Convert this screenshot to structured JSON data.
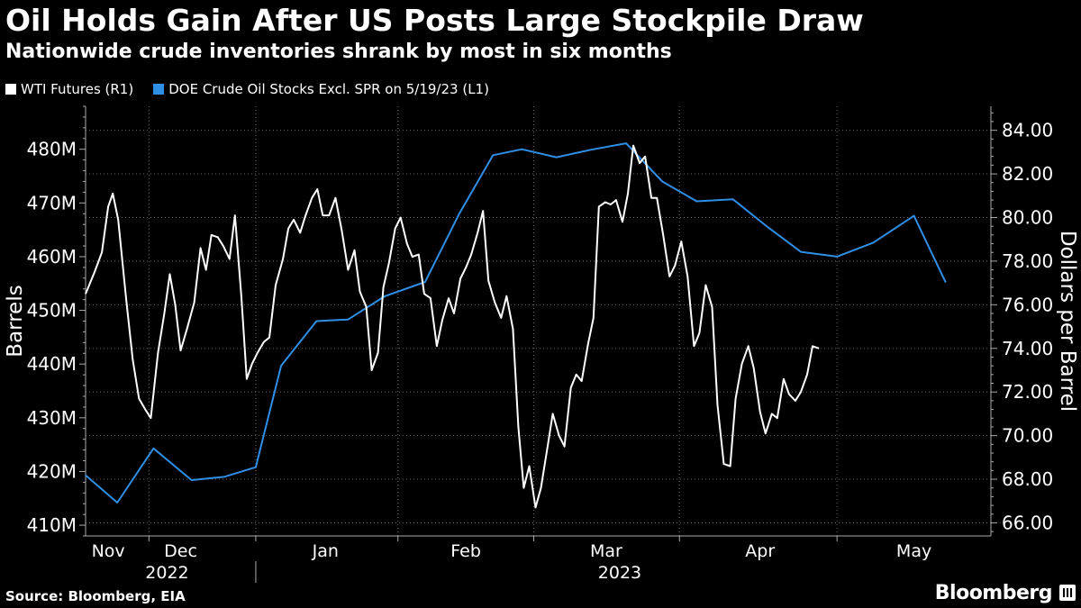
{
  "title": "Oil Holds Gain After US Posts Large Stockpile Draw",
  "subtitle": "Nationwide crude inventories shrank by most in six months",
  "source": "Source: Bloomberg, EIA",
  "brand": "Bloomberg",
  "chart_data": {
    "type": "line",
    "legend": [
      {
        "name": "WTI Futures (R1)",
        "color": "#ffffff"
      },
      {
        "name": "DOE Crude Oil Stocks Excl. SPR on 5/19/23 (L1)",
        "color": "#2f8fe6"
      }
    ],
    "y_left": {
      "label": "Barrels",
      "range": [
        408,
        488
      ],
      "ticks": [
        {
          "value": 410,
          "label": "410M"
        },
        {
          "value": 420,
          "label": "420M"
        },
        {
          "value": 430,
          "label": "430M"
        },
        {
          "value": 440,
          "label": "440M"
        },
        {
          "value": 450,
          "label": "450M"
        },
        {
          "value": 460,
          "label": "460M"
        },
        {
          "value": 470,
          "label": "470M"
        },
        {
          "value": 480,
          "label": "480M"
        }
      ]
    },
    "y_right": {
      "label": "Dollars per Barrel",
      "range": [
        65.4,
        85.1
      ],
      "ticks": [
        {
          "value": 66,
          "label": "66.00"
        },
        {
          "value": 68,
          "label": "68.00"
        },
        {
          "value": 70,
          "label": "70.00"
        },
        {
          "value": 72,
          "label": "72.00"
        },
        {
          "value": 74,
          "label": "74.00"
        },
        {
          "value": 76,
          "label": "76.00"
        },
        {
          "value": 78,
          "label": "78.00"
        },
        {
          "value": 80,
          "label": "80.00"
        },
        {
          "value": 82,
          "label": "82.00"
        },
        {
          "value": 84,
          "label": "84.00"
        }
      ]
    },
    "x_axis": {
      "domain": [
        0,
        1
      ],
      "months": [
        {
          "label": "Nov",
          "pos": 0.025
        },
        {
          "label": "Dec",
          "pos": 0.105
        },
        {
          "label": "Jan",
          "pos": 0.265
        },
        {
          "label": "Feb",
          "pos": 0.42
        },
        {
          "label": "Mar",
          "pos": 0.575
        },
        {
          "label": "Apr",
          "pos": 0.745
        },
        {
          "label": "May",
          "pos": 0.915
        }
      ],
      "month_dividers": [
        0.07,
        0.188,
        0.345,
        0.495,
        0.656,
        0.83
      ],
      "years": [
        {
          "label": "2022",
          "pos": 0.09
        },
        {
          "label": "2023",
          "pos": 0.59
        }
      ],
      "year_divider": 0.188
    },
    "series": [
      {
        "name": "DOE Crude Oil Stocks Excl. SPR on 5/19/23",
        "axis": "left",
        "color": "#2f8fe6",
        "points": [
          [
            0,
            419.3
          ],
          [
            0.035,
            414.2
          ],
          [
            0.075,
            424.3
          ],
          [
            0.117,
            418.4
          ],
          [
            0.153,
            419.0
          ],
          [
            0.188,
            420.8
          ],
          [
            0.216,
            439.7
          ],
          [
            0.255,
            448.0
          ],
          [
            0.29,
            448.3
          ],
          [
            0.33,
            452.6
          ],
          [
            0.375,
            455.3
          ],
          [
            0.413,
            468.1
          ],
          [
            0.45,
            478.9
          ],
          [
            0.482,
            480.0
          ],
          [
            0.52,
            478.5
          ],
          [
            0.558,
            479.9
          ],
          [
            0.597,
            481.1
          ],
          [
            0.637,
            474.0
          ],
          [
            0.675,
            470.3
          ],
          [
            0.715,
            470.7
          ],
          [
            0.752,
            465.7
          ],
          [
            0.79,
            460.9
          ],
          [
            0.83,
            460.0
          ],
          [
            0.87,
            462.6
          ],
          [
            0.915,
            467.6
          ],
          [
            0.95,
            455.2
          ]
        ]
      },
      {
        "name": "WTI Futures",
        "axis": "right",
        "color": "#ffffff",
        "points": [
          [
            0,
            76.5
          ],
          [
            0.01,
            77.5
          ],
          [
            0.018,
            78.4
          ],
          [
            0.025,
            80.5
          ],
          [
            0.03,
            81.1
          ],
          [
            0.036,
            79.9
          ],
          [
            0.045,
            76.2
          ],
          [
            0.052,
            73.5
          ],
          [
            0.059,
            71.7
          ],
          [
            0.066,
            71.2
          ],
          [
            0.072,
            70.8
          ],
          [
            0.08,
            73.8
          ],
          [
            0.087,
            75.6
          ],
          [
            0.093,
            77.4
          ],
          [
            0.099,
            76.0
          ],
          [
            0.105,
            73.9
          ],
          [
            0.112,
            74.9
          ],
          [
            0.12,
            76.1
          ],
          [
            0.127,
            78.6
          ],
          [
            0.133,
            77.6
          ],
          [
            0.139,
            79.2
          ],
          [
            0.146,
            79.1
          ],
          [
            0.152,
            78.7
          ],
          [
            0.159,
            78.1
          ],
          [
            0.165,
            80.1
          ],
          [
            0.172,
            76.4
          ],
          [
            0.178,
            72.6
          ],
          [
            0.184,
            73.3
          ],
          [
            0.19,
            73.8
          ],
          [
            0.197,
            74.3
          ],
          [
            0.203,
            74.5
          ],
          [
            0.21,
            76.9
          ],
          [
            0.218,
            78.1
          ],
          [
            0.224,
            79.5
          ],
          [
            0.23,
            79.9
          ],
          [
            0.237,
            79.3
          ],
          [
            0.243,
            80.1
          ],
          [
            0.25,
            80.9
          ],
          [
            0.256,
            81.3
          ],
          [
            0.262,
            80.1
          ],
          [
            0.269,
            80.1
          ],
          [
            0.276,
            80.9
          ],
          [
            0.283,
            79.4
          ],
          [
            0.29,
            77.6
          ],
          [
            0.297,
            78.5
          ],
          [
            0.303,
            76.6
          ],
          [
            0.31,
            75.9
          ],
          [
            0.316,
            73.0
          ],
          [
            0.323,
            73.8
          ],
          [
            0.329,
            76.8
          ],
          [
            0.335,
            77.9
          ],
          [
            0.342,
            79.5
          ],
          [
            0.348,
            80.0
          ],
          [
            0.355,
            78.8
          ],
          [
            0.361,
            78.2
          ],
          [
            0.368,
            78.3
          ],
          [
            0.374,
            76.5
          ],
          [
            0.381,
            76.3
          ],
          [
            0.388,
            74.1
          ],
          [
            0.394,
            75.3
          ],
          [
            0.401,
            76.3
          ],
          [
            0.407,
            75.6
          ],
          [
            0.414,
            77.2
          ],
          [
            0.42,
            77.7
          ],
          [
            0.426,
            78.3
          ],
          [
            0.433,
            79.3
          ],
          [
            0.439,
            80.3
          ],
          [
            0.445,
            77.1
          ],
          [
            0.452,
            76.1
          ],
          [
            0.459,
            75.4
          ],
          [
            0.465,
            76.4
          ],
          [
            0.472,
            74.9
          ],
          [
            0.478,
            70.4
          ],
          [
            0.484,
            67.6
          ],
          [
            0.49,
            68.6
          ],
          [
            0.497,
            66.7
          ],
          [
            0.503,
            67.6
          ],
          [
            0.51,
            69.4
          ],
          [
            0.516,
            71.0
          ],
          [
            0.523,
            70.0
          ],
          [
            0.529,
            69.5
          ],
          [
            0.536,
            72.2
          ],
          [
            0.542,
            72.8
          ],
          [
            0.548,
            72.5
          ],
          [
            0.555,
            74.2
          ],
          [
            0.561,
            75.4
          ],
          [
            0.567,
            80.5
          ],
          [
            0.574,
            80.7
          ],
          [
            0.58,
            80.6
          ],
          [
            0.586,
            80.8
          ],
          [
            0.593,
            79.8
          ],
          [
            0.599,
            81.1
          ],
          [
            0.605,
            83.3
          ],
          [
            0.612,
            82.5
          ],
          [
            0.618,
            82.8
          ],
          [
            0.625,
            80.9
          ],
          [
            0.631,
            80.9
          ],
          [
            0.638,
            79.2
          ],
          [
            0.645,
            77.3
          ],
          [
            0.651,
            77.8
          ],
          [
            0.658,
            78.9
          ],
          [
            0.665,
            77.3
          ],
          [
            0.672,
            74.1
          ],
          [
            0.678,
            74.7
          ],
          [
            0.685,
            76.9
          ],
          [
            0.692,
            75.9
          ],
          [
            0.698,
            71.4
          ],
          [
            0.705,
            68.7
          ],
          [
            0.712,
            68.6
          ],
          [
            0.718,
            71.7
          ],
          [
            0.725,
            73.3
          ],
          [
            0.732,
            74.1
          ],
          [
            0.738,
            73.1
          ],
          [
            0.745,
            71.1
          ],
          [
            0.751,
            70.1
          ],
          [
            0.758,
            71.0
          ],
          [
            0.764,
            70.8
          ],
          [
            0.771,
            72.6
          ],
          [
            0.777,
            71.9
          ],
          [
            0.784,
            71.6
          ],
          [
            0.79,
            72.0
          ],
          [
            0.797,
            72.8
          ],
          [
            0.803,
            74.1
          ],
          [
            0.81,
            74.0
          ]
        ]
      }
    ]
  }
}
